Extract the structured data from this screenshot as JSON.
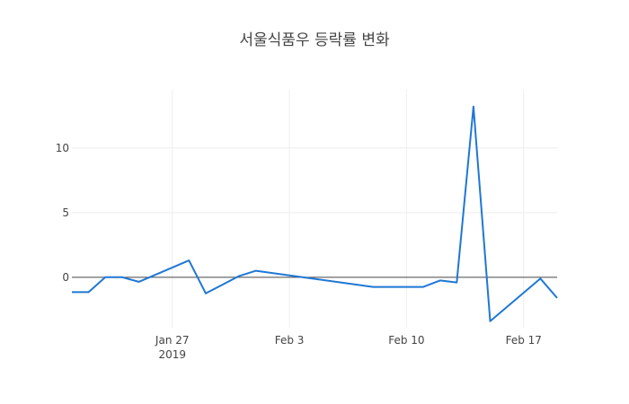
{
  "chart_data": {
    "type": "line",
    "title": "서울식품우 등락률 변화",
    "xlabel": "",
    "ylabel": "",
    "x_axis": {
      "type": "date",
      "range": [
        "2019-01-21",
        "2019-02-19"
      ],
      "ticks": [
        {
          "date": "2019-01-27",
          "label": "Jan 27",
          "sublabel": "2019"
        },
        {
          "date": "2019-02-03",
          "label": "Feb 3",
          "sublabel": ""
        },
        {
          "date": "2019-02-10",
          "label": "Feb 10",
          "sublabel": ""
        },
        {
          "date": "2019-02-17",
          "label": "Feb 17",
          "sublabel": ""
        }
      ]
    },
    "y_axis": {
      "range": [
        -3.9,
        14.5
      ],
      "ticks": [
        0,
        5,
        10
      ]
    },
    "grid": true,
    "zero_line": true,
    "series": [
      {
        "color": "#1f77d4",
        "points": [
          {
            "x": "2019-01-21",
            "y": -1.15
          },
          {
            "x": "2019-01-22",
            "y": -1.15
          },
          {
            "x": "2019-01-23",
            "y": 0.0
          },
          {
            "x": "2019-01-24",
            "y": 0.0
          },
          {
            "x": "2019-01-25",
            "y": -0.35
          },
          {
            "x": "2019-01-28",
            "y": 1.3
          },
          {
            "x": "2019-01-29",
            "y": -1.25
          },
          {
            "x": "2019-01-31",
            "y": 0.1
          },
          {
            "x": "2019-02-01",
            "y": 0.5
          },
          {
            "x": "2019-02-08",
            "y": -0.75
          },
          {
            "x": "2019-02-11",
            "y": -0.75
          },
          {
            "x": "2019-02-12",
            "y": -0.25
          },
          {
            "x": "2019-02-13",
            "y": -0.4
          },
          {
            "x": "2019-02-14",
            "y": 13.2
          },
          {
            "x": "2019-02-15",
            "y": -3.4
          },
          {
            "x": "2019-02-18",
            "y": -0.1
          },
          {
            "x": "2019-02-19",
            "y": -1.6
          }
        ]
      }
    ]
  }
}
